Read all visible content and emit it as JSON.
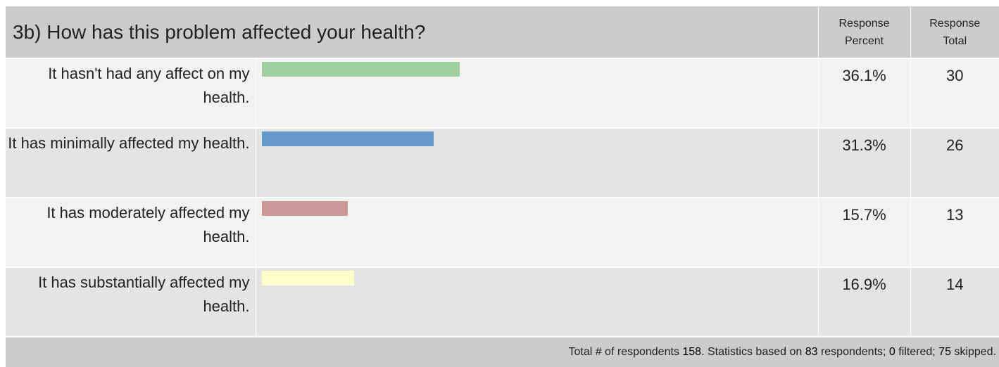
{
  "header": {
    "question": "3b) How has this problem affected your health?",
    "col_percent": "Response Percent",
    "col_total": "Response Total"
  },
  "chart_data": {
    "type": "bar",
    "categories": [
      "It hasn't had any affect on my health.",
      "It has minimally affected my health.",
      "It has moderately affected my health.",
      "It has substantially affected my health."
    ],
    "percent_labels": [
      "36.1%",
      "31.3%",
      "15.7%",
      "16.9%"
    ],
    "values": [
      36.1,
      31.3,
      15.7,
      16.9
    ],
    "totals": [
      "30",
      "26",
      "13",
      "14"
    ],
    "colors": [
      "#9fcf9f",
      "#6699cc",
      "#cc9999",
      "#ffffcc"
    ],
    "xlim": [
      0,
      100
    ]
  },
  "footer": {
    "prefix": "Total # of respondents ",
    "respondents": "158",
    "mid1": ". Statistics based on ",
    "based_on": "83",
    "mid2": " respondents; ",
    "filtered": "0",
    "mid3": " filtered; ",
    "skipped": "75",
    "suffix": " skipped."
  }
}
